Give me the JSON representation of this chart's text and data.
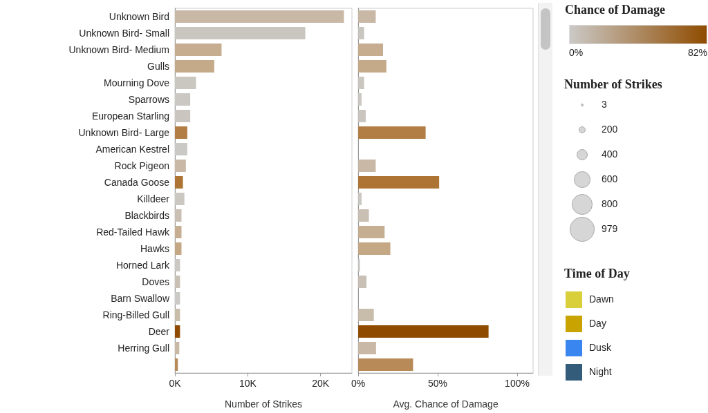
{
  "chart_data": [
    {
      "type": "bar",
      "orientation": "horizontal",
      "xlabel": "Number of Strikes",
      "categories": [
        "Unknown Bird",
        "Unknown Bird- Small",
        "Unknown Bird- Medium",
        "Gulls",
        "Mourning Dove",
        "Sparrows",
        "European Starling",
        "Unknown Bird- Large",
        "American Kestrel",
        "Rock Pigeon",
        "Canada Goose",
        "Killdeer",
        "Blackbirds",
        "Red-Tailed Hawk",
        "Hawks",
        "Horned Lark",
        "Doves",
        "Barn Swallow",
        "Ring-Billed Gull",
        "Deer",
        "Herring Gull",
        null
      ],
      "values": [
        23200,
        17900,
        6400,
        5400,
        2900,
        2100,
        2100,
        1700,
        1700,
        1500,
        1100,
        1300,
        900,
        900,
        900,
        700,
        700,
        700,
        700,
        700,
        600,
        400
      ],
      "colors": [
        "#c8b8a5",
        "#c9c5bf",
        "#c6ad8f",
        "#c5aa8a",
        "#cac6c0",
        "#cbc8c3",
        "#cac5be",
        "#b27e45",
        "#cbc9c6",
        "#c8b8a5",
        "#ad7433",
        "#cbc7c1",
        "#c9bfb2",
        "#c6ae92",
        "#c4a784",
        "#cbc8c4",
        "#c9c0b5",
        "#cbc9c6",
        "#c8bcab",
        "#8f4c00",
        "#c8b8a5",
        "#b78a58"
      ],
      "xlim": [
        0,
        24300
      ],
      "xticks": [
        {
          "value": 0,
          "label": "0K"
        },
        {
          "value": 10000,
          "label": "10K"
        },
        {
          "value": 20000,
          "label": "20K"
        }
      ],
      "grid": false
    },
    {
      "type": "bar",
      "orientation": "horizontal",
      "xlabel": "Avg. Chance of Damage",
      "tick_labels": "x",
      "categories": [
        null,
        null,
        null,
        null,
        null,
        null,
        null,
        null,
        null,
        null,
        null,
        null,
        null,
        null,
        null,
        null,
        null,
        null,
        null,
        null,
        null,
        null
      ],
      "values": [
        11,
        3.7,
        15.6,
        17.7,
        3.7,
        2.1,
        4.7,
        42.4,
        0,
        11,
        50.9,
        2.1,
        6.7,
        16.6,
        20.2,
        1.1,
        5.2,
        0,
        9.8,
        82,
        11.2,
        34.5
      ],
      "colors": [
        "#c8b8a5",
        "#c9c5bf",
        "#c6ad8f",
        "#c5aa8a",
        "#cac6c0",
        "#cbc8c3",
        "#cac5be",
        "#b27e45",
        "#cbc9c6",
        "#c8b8a5",
        "#ad7433",
        "#cbc7c1",
        "#c9bfb2",
        "#c6ae92",
        "#c4a784",
        "#cbc8c4",
        "#c9c0b5",
        "#cbc9c6",
        "#c8bcab",
        "#8f4c00",
        "#c8b8a5",
        "#b78a58"
      ],
      "xlim": [
        0,
        110
      ],
      "xticks": [
        {
          "value": 0,
          "label": "0%"
        },
        {
          "value": 50,
          "label": "50%"
        },
        {
          "value": 100,
          "label": "100%"
        }
      ],
      "grid": false,
      "clabel": "Chance of Damage",
      "clim": [
        0,
        82
      ],
      "cticks": [
        {
          "value": 0,
          "label": "0%"
        },
        {
          "value": 82,
          "label": "82%"
        }
      ]
    },
    {
      "type": "other",
      "title": "Number of Strikes",
      "annotations": [
        "3",
        "200",
        "400",
        "600",
        "800",
        "979"
      ]
    },
    {
      "type": "other",
      "title": "Time of Day",
      "categories": [
        "Dawn",
        "Day",
        "Dusk",
        "Night"
      ],
      "colors": [
        "#d9cf3a",
        "#c9a400",
        "#3a86f0",
        "#335c7a"
      ]
    }
  ]
}
